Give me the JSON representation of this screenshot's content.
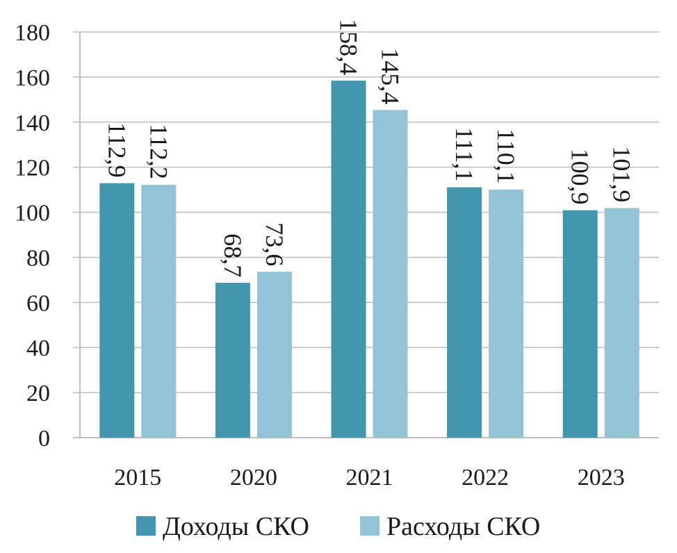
{
  "chart_data": {
    "type": "bar",
    "title": "",
    "xlabel": "",
    "ylabel": "",
    "categories": [
      "2015",
      "2020",
      "2021",
      "2022",
      "2023"
    ],
    "series": [
      {
        "name": "Доходы СКО",
        "values": [
          112.9,
          68.7,
          158.4,
          111.1,
          100.9
        ],
        "labels": [
          "112,9",
          "68,7",
          "158,4",
          "111,1",
          "100,9"
        ],
        "color": "#4296ae"
      },
      {
        "name": "Расходы СКО",
        "values": [
          112.2,
          73.6,
          145.4,
          110.1,
          101.9
        ],
        "labels": [
          "112,2",
          "73,6",
          "145,4",
          "110,1",
          "101,9"
        ],
        "color": "#93c3d6"
      }
    ],
    "ylim": [
      0,
      180
    ],
    "yticks": [
      "0",
      "20",
      "40",
      "60",
      "80",
      "100",
      "120",
      "140",
      "160",
      "180"
    ],
    "grid": true,
    "legend_position": "bottom",
    "data_label_orientation": "vertical"
  }
}
